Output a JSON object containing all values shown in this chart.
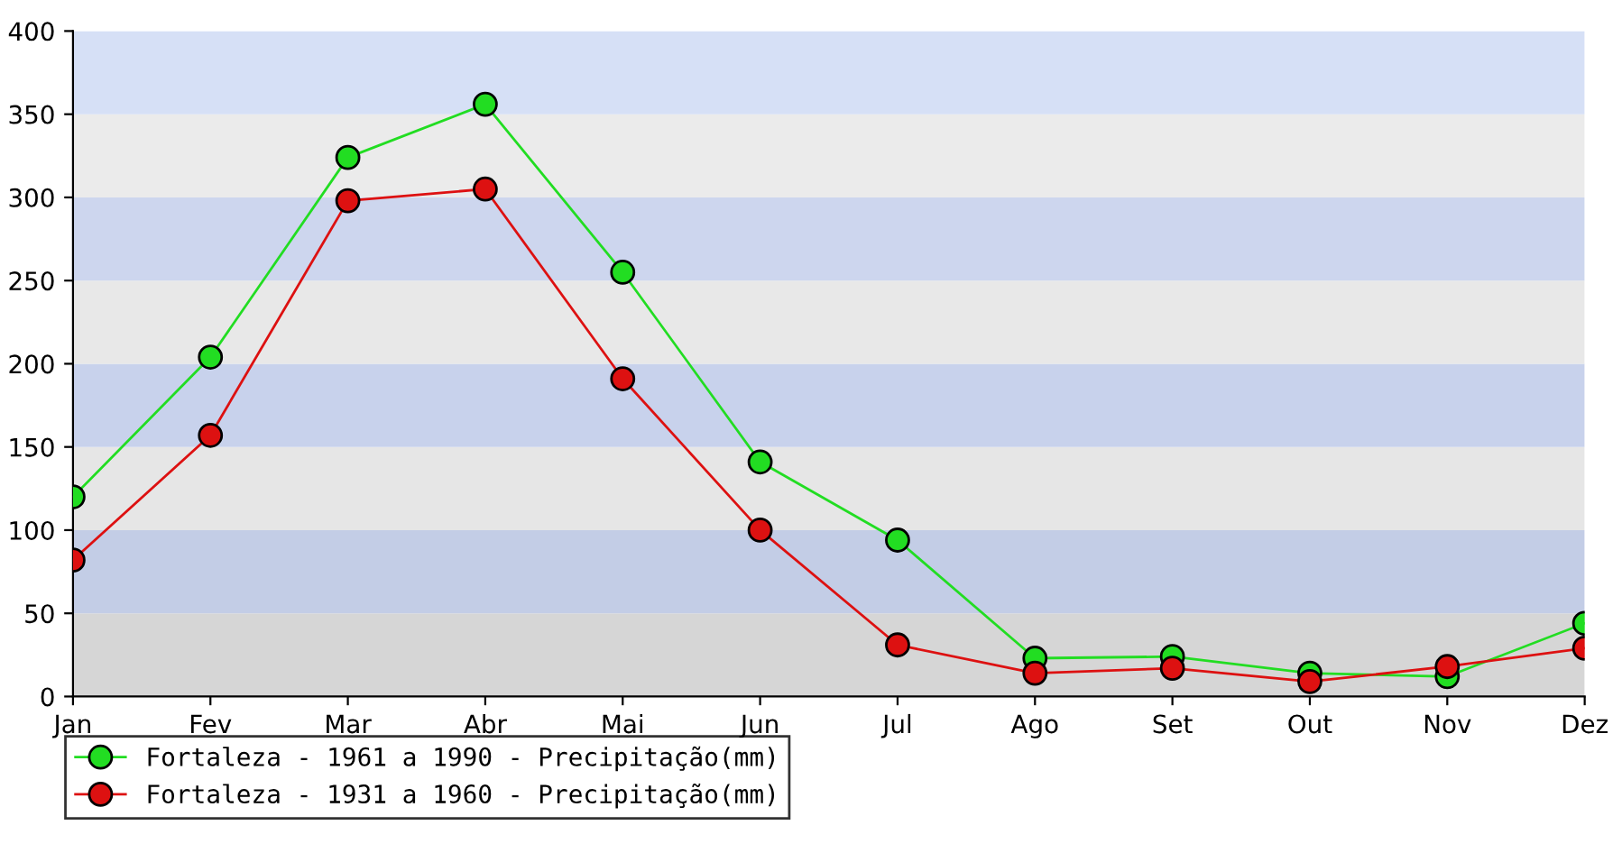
{
  "chart_data": {
    "type": "line",
    "categories": [
      "Jan",
      "Fev",
      "Mar",
      "Abr",
      "Mai",
      "Jun",
      "Jul",
      "Ago",
      "Set",
      "Out",
      "Nov",
      "Dez"
    ],
    "series": [
      {
        "name": "Fortaleza - 1961 a 1990 - Precipitação(mm)",
        "color": "#22dd22",
        "values": [
          120,
          204,
          324,
          356,
          255,
          141,
          94,
          23,
          24,
          14,
          12,
          44
        ]
      },
      {
        "name": "Fortaleza - 1931 a 1960 - Precipitação(mm)",
        "color": "#dd1111",
        "values": [
          82,
          157,
          298,
          305,
          191,
          100,
          31,
          14,
          17,
          9,
          18,
          29
        ]
      }
    ],
    "ylim": [
      0,
      400
    ],
    "yticks": [
      0,
      50,
      100,
      150,
      200,
      250,
      300,
      350,
      400
    ],
    "grid": false,
    "legend": "bottom left",
    "marker": "circle",
    "line_style": "solid"
  }
}
